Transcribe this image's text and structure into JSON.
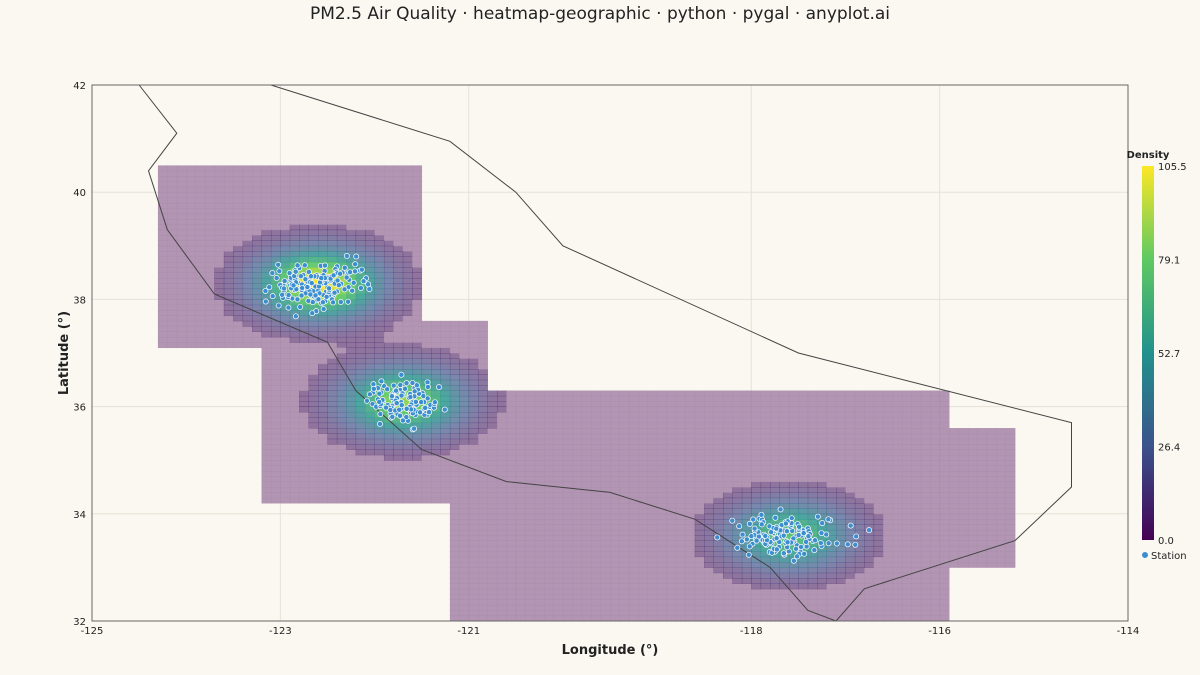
{
  "chart_data": {
    "type": "heatmap",
    "title": "PM2.5 Air Quality · heatmap-geographic · python · pygal · anyplot.ai",
    "xlabel": "Longitude (°)",
    "ylabel": "Latitude (°)",
    "xlim": [
      -125,
      -114
    ],
    "ylim": [
      32,
      42
    ],
    "x_ticks": [
      "-125",
      "-123",
      "-121",
      "-118",
      "-116",
      "-114"
    ],
    "x_tick_values": [
      -125,
      -123,
      -121,
      -118,
      -116,
      -114
    ],
    "y_ticks": [
      "32",
      "34",
      "36",
      "38",
      "40",
      "42"
    ],
    "y_tick_values": [
      32,
      34,
      36,
      38,
      40,
      42
    ],
    "grid": true,
    "colorscale": "viridis",
    "colorbar": {
      "title": "Density",
      "min": 0.0,
      "max": 105.5,
      "ticks": [
        "0.0",
        "26.4",
        "52.7",
        "79.1",
        "105.5"
      ]
    },
    "legend": {
      "position": "right",
      "entries": [
        {
          "name": "Station",
          "marker": "circle",
          "color": "#3d8ecf"
        }
      ]
    },
    "hotspots": [
      {
        "lon": -122.6,
        "lat": 38.3,
        "peak": 105.5
      },
      {
        "lon": -121.7,
        "lat": 36.1,
        "peak": 88
      },
      {
        "lon": -117.6,
        "lat": 33.6,
        "peak": 75
      }
    ],
    "boundary": [
      [
        -124.5,
        42.0
      ],
      [
        -123.1,
        42.0
      ],
      [
        -121.2,
        40.95
      ],
      [
        -120.5,
        40.0
      ],
      [
        -120.0,
        39.0
      ],
      [
        -117.5,
        37.0
      ],
      [
        -114.6,
        35.7
      ],
      [
        -114.6,
        34.5
      ],
      [
        -115.2,
        33.5
      ],
      [
        -116.8,
        32.6
      ],
      [
        -117.1,
        32.0
      ],
      [
        -117.4,
        32.2
      ],
      [
        -117.8,
        33.0
      ],
      [
        -118.6,
        33.9
      ],
      [
        -119.5,
        34.4
      ],
      [
        -120.6,
        34.6
      ],
      [
        -121.5,
        35.2
      ],
      [
        -122.2,
        36.3
      ],
      [
        -122.5,
        37.2
      ],
      [
        -123.7,
        38.1
      ],
      [
        -124.2,
        39.3
      ],
      [
        -124.4,
        40.4
      ],
      [
        -124.1,
        41.1
      ],
      [
        -124.5,
        42.0
      ]
    ],
    "stations": []
  }
}
